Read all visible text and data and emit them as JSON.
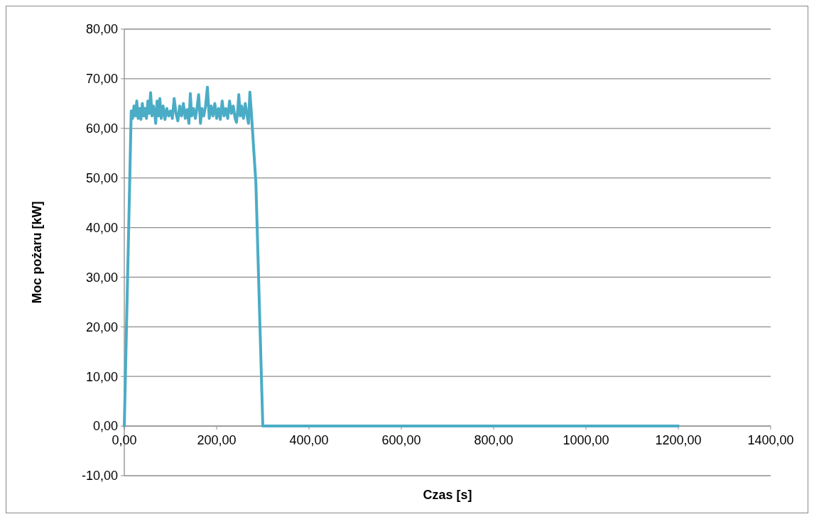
{
  "chart_data": {
    "type": "line",
    "xlabel": "Czas [s]",
    "ylabel": "Moc pożaru [kW]",
    "xlim": [
      0,
      1400
    ],
    "ylim": [
      -10,
      80
    ],
    "xticks": [
      {
        "value": 0,
        "label": "0,00"
      },
      {
        "value": 200,
        "label": "200,00"
      },
      {
        "value": 400,
        "label": "400,00"
      },
      {
        "value": 600,
        "label": "600,00"
      },
      {
        "value": 800,
        "label": "800,00"
      },
      {
        "value": 1000,
        "label": "1000,00"
      },
      {
        "value": 1200,
        "label": "1200,00"
      },
      {
        "value": 1400,
        "label": "1400,00"
      }
    ],
    "yticks": [
      {
        "value": -10,
        "label": "-10,00"
      },
      {
        "value": 0,
        "label": "0,00"
      },
      {
        "value": 10,
        "label": "10,00"
      },
      {
        "value": 20,
        "label": "20,00"
      },
      {
        "value": 30,
        "label": "30,00"
      },
      {
        "value": 40,
        "label": "40,00"
      },
      {
        "value": 50,
        "label": "50,00"
      },
      {
        "value": 60,
        "label": "60,00"
      },
      {
        "value": 70,
        "label": "70,00"
      },
      {
        "value": 80,
        "label": "80,00"
      }
    ],
    "grid": "y",
    "marker": "none",
    "line_style": "solid",
    "series": [
      {
        "color": "#4bacc6",
        "x": [
          0,
          5,
          10,
          15,
          18,
          21,
          24,
          27,
          30,
          33,
          36,
          39,
          42,
          45,
          48,
          51,
          54,
          57,
          60,
          63,
          66,
          68,
          71,
          74,
          77,
          80,
          84,
          88,
          92,
          96,
          100,
          104,
          108,
          112,
          116,
          120,
          124,
          128,
          132,
          136,
          140,
          143,
          146,
          150,
          154,
          158,
          161,
          165,
          168,
          172,
          176,
          180,
          184,
          188,
          192,
          196,
          200,
          204,
          208,
          212,
          216,
          220,
          224,
          228,
          232,
          236,
          240,
          243,
          246,
          248,
          251,
          254,
          258,
          262,
          266,
          269,
          272,
          275,
          285,
          300,
          1200
        ],
        "values": [
          0,
          21,
          42,
          63.5,
          62,
          64.5,
          62.5,
          65.5,
          62,
          64,
          61.8,
          65,
          62.5,
          64,
          62,
          65.5,
          63,
          67.2,
          62.5,
          64.5,
          63,
          61,
          65.5,
          62.5,
          66,
          62,
          64.5,
          61.8,
          64,
          62.5,
          63.5,
          62,
          66,
          63,
          61.5,
          64.5,
          62.5,
          65,
          62,
          63.8,
          61,
          67,
          62.5,
          64,
          62,
          64.5,
          66.8,
          61,
          64,
          62.5,
          64.5,
          68.3,
          62,
          64.5,
          62.5,
          65,
          62,
          64,
          61.8,
          65.5,
          62.5,
          64,
          62,
          65.5,
          63,
          64.5,
          62,
          61.2,
          64,
          66.8,
          62.5,
          64.5,
          62,
          65,
          62.5,
          61,
          67.3,
          63.5,
          49,
          0,
          0
        ]
      }
    ]
  }
}
